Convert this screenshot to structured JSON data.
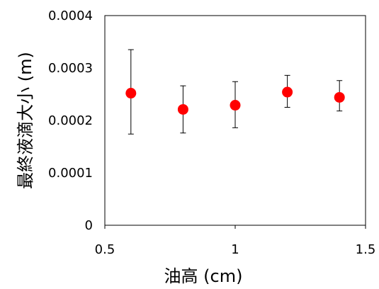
{
  "chart_data": {
    "type": "scatter",
    "xlabel": "油高 (cm)",
    "ylabel": "最終液滴大小 (m)",
    "xlim": [
      0.5,
      1.5
    ],
    "ylim": [
      0,
      0.0004
    ],
    "x_ticks": [
      0.5,
      1,
      1.5
    ],
    "x_tick_labels": [
      "0.5",
      "1",
      "1.5"
    ],
    "y_ticks": [
      0,
      0.0001,
      0.0002,
      0.0003,
      0.0004
    ],
    "y_tick_labels": [
      "0",
      "0.0001",
      "0.0002",
      "0.0003",
      "0.0004"
    ],
    "grid": false,
    "marker_color": "#ff0000",
    "errorbar_color": "#000000",
    "points": [
      {
        "x": 0.6,
        "y": 0.000252,
        "y_low": 0.000174,
        "y_high": 0.000335
      },
      {
        "x": 0.8,
        "y": 0.000221,
        "y_low": 0.000176,
        "y_high": 0.000266
      },
      {
        "x": 1.0,
        "y": 0.000229,
        "y_low": 0.000186,
        "y_high": 0.000274
      },
      {
        "x": 1.2,
        "y": 0.000254,
        "y_low": 0.000225,
        "y_high": 0.000286
      },
      {
        "x": 1.4,
        "y": 0.000244,
        "y_low": 0.000218,
        "y_high": 0.000276
      }
    ]
  }
}
